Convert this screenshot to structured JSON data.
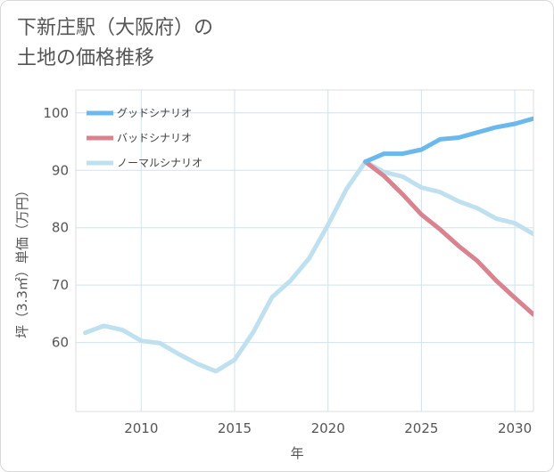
{
  "title": {
    "line1": "下新庄駅（大阪府）の",
    "line2": "土地の価格推移"
  },
  "chart_data": {
    "type": "line",
    "xlabel": "年",
    "ylabel": "坪（3.3㎡）単価（万円）",
    "xlim": [
      2006.5,
      2031
    ],
    "ylim": [
      48,
      104
    ],
    "xticks": [
      2010,
      2015,
      2020,
      2025,
      2030
    ],
    "yticks": [
      60,
      70,
      80,
      90,
      100
    ],
    "grid": true,
    "legend_position": "top-left",
    "series": [
      {
        "name": "グッドシナリオ",
        "color": "#6bb8ec",
        "x": [
          2022,
          2023,
          2024,
          2025,
          2026,
          2027,
          2028,
          2029,
          2030,
          2031
        ],
        "values": [
          91.5,
          92.9,
          92.9,
          93.6,
          95.4,
          95.7,
          96.6,
          97.5,
          98.1,
          99.0
        ]
      },
      {
        "name": "バッドシナリオ",
        "color": "#d9838f",
        "x": [
          2022,
          2023,
          2024,
          2025,
          2026,
          2027,
          2028,
          2029,
          2030,
          2031
        ],
        "values": [
          91.5,
          89.0,
          85.8,
          82.3,
          79.7,
          76.8,
          74.2,
          70.8,
          67.8,
          64.9
        ]
      },
      {
        "name": "ノーマルシナリオ",
        "color": "#bfe0ee",
        "x": [
          2007,
          2008,
          2009,
          2010,
          2011,
          2012,
          2013,
          2014,
          2015,
          2016,
          2017,
          2018,
          2019,
          2020,
          2021,
          2022,
          2023,
          2024,
          2025,
          2026,
          2027,
          2028,
          2029,
          2030,
          2031
        ],
        "values": [
          61.7,
          62.9,
          62.2,
          60.3,
          59.9,
          58.0,
          56.3,
          55.0,
          57.0,
          61.8,
          67.9,
          70.8,
          74.7,
          80.5,
          86.8,
          91.5,
          89.7,
          88.9,
          87.0,
          86.2,
          84.6,
          83.4,
          81.6,
          80.8,
          78.9
        ]
      }
    ]
  }
}
